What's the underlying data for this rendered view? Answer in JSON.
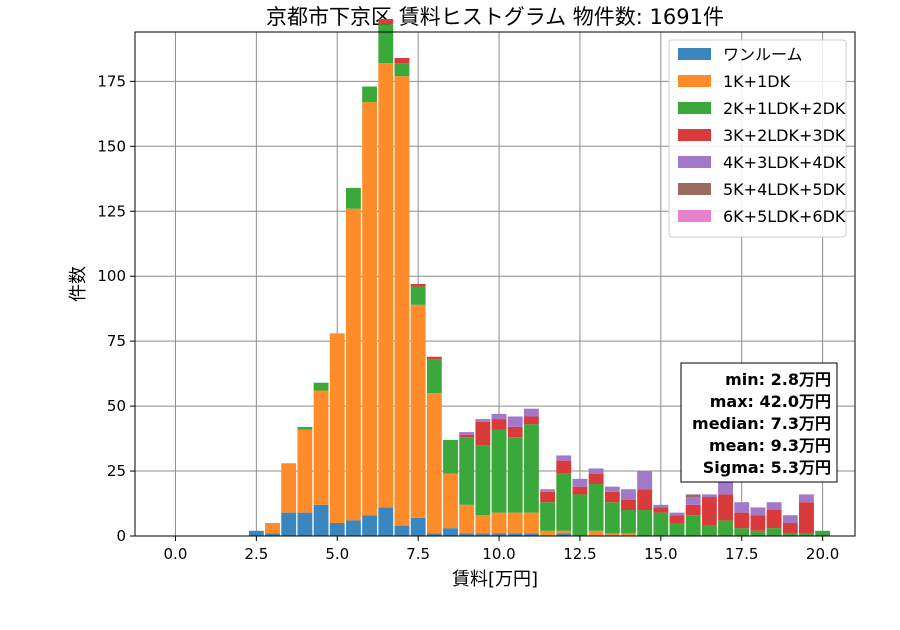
{
  "chart_data": {
    "type": "bar",
    "stacked": true,
    "title": "京都市下京区 賃料ヒストグラム 物件数: 1691件",
    "xlabel": "賃料[万円]",
    "ylabel": "件数",
    "xlim": [
      -1.25,
      21.0
    ],
    "ylim": [
      0,
      194
    ],
    "xticks": [
      0.0,
      2.5,
      5.0,
      7.5,
      10.0,
      12.5,
      15.0,
      17.5,
      20.0
    ],
    "xtick_labels": [
      "0.0",
      "2.5",
      "5.0",
      "7.5",
      "10.0",
      "12.5",
      "15.0",
      "17.5",
      "20.0"
    ],
    "yticks": [
      0,
      25,
      50,
      75,
      100,
      125,
      150,
      175
    ],
    "ytick_labels": [
      "0",
      "25",
      "50",
      "75",
      "100",
      "125",
      "150",
      "175"
    ],
    "grid": true,
    "legend_position": "top-right",
    "bin_width": 0.5,
    "x": [
      2.5,
      3.0,
      3.5,
      4.0,
      4.5,
      5.0,
      5.5,
      6.0,
      6.5,
      7.0,
      7.5,
      8.0,
      8.5,
      9.0,
      9.5,
      10.0,
      10.5,
      11.0,
      11.5,
      12.0,
      12.5,
      13.0,
      13.5,
      14.0,
      14.5,
      15.0,
      15.5,
      16.0,
      16.5,
      17.0,
      17.5,
      18.0,
      18.5,
      19.0,
      19.5,
      20.0
    ],
    "series": [
      {
        "name": "ワンルーム",
        "color": "#3a87c0",
        "values": [
          2,
          1,
          9,
          9,
          12,
          5,
          6,
          8,
          11,
          4,
          7,
          1,
          3,
          1,
          1,
          1,
          1,
          1,
          0,
          1,
          0,
          0,
          0,
          0,
          0,
          0,
          0,
          0,
          0,
          0,
          0,
          0,
          0,
          0,
          0,
          0
        ]
      },
      {
        "name": "1K+1DK",
        "color": "#ff8c2a",
        "values": [
          0,
          4,
          19,
          32,
          44,
          73,
          120,
          159,
          171,
          173,
          82,
          54,
          21,
          11,
          7,
          8,
          8,
          8,
          2,
          1,
          0,
          2,
          1,
          1,
          0,
          0,
          0,
          0,
          0,
          0,
          0,
          0,
          0,
          0,
          0,
          0
        ]
      },
      {
        "name": "2K+1LDK+2DK",
        "color": "#3aa83a",
        "values": [
          0,
          0,
          0,
          1,
          3,
          0,
          8,
          6,
          15,
          5,
          7,
          13,
          13,
          26,
          27,
          32,
          29,
          34,
          11,
          22,
          16,
          18,
          12,
          9,
          10,
          9,
          5,
          8,
          4,
          6,
          3,
          2,
          3,
          1,
          1,
          2
        ]
      },
      {
        "name": "3K+2LDK+3DK",
        "color": "#d93a3a",
        "values": [
          0,
          0,
          0,
          0,
          0,
          0,
          0,
          0,
          2,
          2,
          1,
          1,
          0,
          1,
          9,
          4,
          4,
          3,
          4,
          5,
          3,
          4,
          4,
          4,
          8,
          2,
          3,
          4,
          11,
          10,
          6,
          6,
          7,
          4,
          12,
          0
        ]
      },
      {
        "name": "4K+3LDK+4DK",
        "color": "#a179c8",
        "values": [
          0,
          0,
          0,
          0,
          0,
          0,
          0,
          0,
          0,
          0,
          0,
          0,
          0,
          1,
          1,
          2,
          4,
          3,
          1,
          2,
          3,
          2,
          2,
          4,
          7,
          1,
          1,
          3,
          1,
          5,
          4,
          3,
          3,
          3,
          3,
          0
        ]
      },
      {
        "name": "5K+4LDK+5DK",
        "color": "#9a6b5e",
        "values": [
          0,
          0,
          0,
          0,
          0,
          0,
          0,
          0,
          0,
          0,
          0,
          0,
          0,
          0,
          0,
          0,
          0,
          0,
          0,
          0,
          0,
          0,
          0,
          0,
          0,
          0,
          0,
          1,
          0,
          0,
          0,
          0,
          0,
          0,
          0,
          0
        ]
      },
      {
        "name": "6K+5LDK+6DK",
        "color": "#e882cc",
        "values": [
          0,
          0,
          0,
          0,
          0,
          0,
          0,
          0,
          0,
          0,
          0,
          0,
          0,
          0,
          0,
          0,
          0,
          0,
          0,
          0,
          0,
          0,
          0,
          0,
          0,
          0,
          0,
          0,
          0,
          0,
          0,
          0,
          0,
          0,
          0,
          0
        ]
      }
    ],
    "stats": [
      "min: 2.8万円",
      "max: 42.0万円",
      "median: 7.3万円",
      "mean: 9.3万円",
      "Sigma: 5.3万円"
    ]
  }
}
